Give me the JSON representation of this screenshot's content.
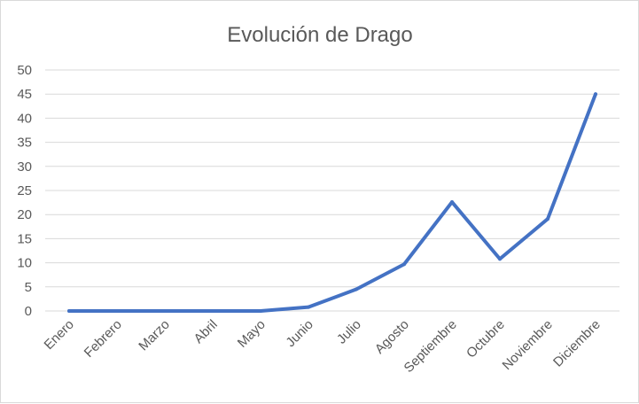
{
  "chart_data": {
    "type": "line",
    "title": "Evolución de Drago",
    "xlabel": "",
    "ylabel": "",
    "categories": [
      "Enero",
      "Febrero",
      "Marzo",
      "Abril",
      "Mayo",
      "Junio",
      "Julio",
      "Agosto",
      "Septiembre",
      "Octubre",
      "Noviembre",
      "Diciembre"
    ],
    "series": [
      {
        "values": [
          0,
          0,
          0,
          0,
          0,
          0.8,
          4.5,
          9.7,
          22.6,
          10.8,
          19.1,
          45.0
        ]
      }
    ],
    "ylim": [
      0,
      50
    ],
    "yticks": [
      0,
      5,
      10,
      15,
      20,
      25,
      30,
      35,
      40,
      45,
      50
    ],
    "grid": true,
    "legend": "none",
    "colors": {
      "line": "#4472c4",
      "grid": "#d9d9d9",
      "text": "#595959"
    }
  }
}
